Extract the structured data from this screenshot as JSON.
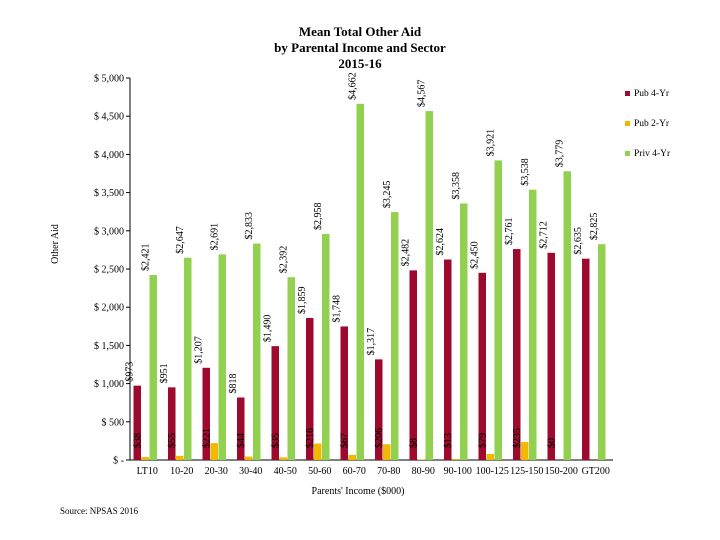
{
  "chart_data": {
    "type": "bar",
    "title_lines": [
      "Mean Total Other Aid",
      "by Parental Income and Sector",
      "2015-16"
    ],
    "ylabel": "Other Aid",
    "xlabel": "Parents' Income ($000)",
    "ylim": [
      0,
      5000
    ],
    "ytick_values": [
      0,
      500,
      1000,
      1500,
      2000,
      2500,
      3000,
      3500,
      4000,
      4500,
      5000
    ],
    "ytick_labels": [
      "$ -",
      "$ 500",
      "$ 1,000",
      "$ 1,500",
      "$ 2,000",
      "$ 2,500",
      "$ 3,000",
      "$ 3,500",
      "$ 4,000",
      "$ 4,500",
      "$ 5,000"
    ],
    "categories": [
      "LT10",
      "10-20",
      "20-30",
      "30-40",
      "40-50",
      "50-60",
      "60-70",
      "70-80",
      "80-90",
      "90-100",
      "100-125",
      "125-150",
      "150-200",
      "GT200"
    ],
    "series": [
      {
        "name": "Pub 4-Yr",
        "color": "#9e0a2e",
        "values": [
          973,
          951,
          1207,
          818,
          1490,
          1859,
          1748,
          1317,
          2482,
          2624,
          2450,
          2761,
          2712,
          2635
        ],
        "labels": [
          "$973",
          "$951",
          "$1,207",
          "$818",
          "$1,490",
          "$1,859",
          "$1,748",
          "$1,317",
          "$2,482",
          "$2,624",
          "$2,450",
          "$2,761",
          "$2,712",
          "$2,635"
        ]
      },
      {
        "name": "Pub 2-Yr",
        "color": "#f2b800",
        "values": [
          38,
          55,
          221,
          44,
          35,
          216,
          67,
          206,
          8,
          13,
          79,
          235,
          0,
          null
        ],
        "labels": [
          "$38",
          "$55",
          "$221",
          "$44",
          "$35",
          "$216",
          "$67",
          "$206",
          "$8",
          "$13",
          "$79",
          "$235",
          "$0",
          ""
        ]
      },
      {
        "name": "Priv 4-Yr",
        "color": "#92d050",
        "values": [
          2421,
          2647,
          2691,
          2833,
          2392,
          2958,
          4662,
          3245,
          4567,
          3358,
          3921,
          3538,
          3779,
          2825
        ],
        "labels": [
          "$2,421",
          "$2,647",
          "$2,691",
          "$2,833",
          "$2,392",
          "$2,958",
          "$4,662",
          "$3,245",
          "$4,567",
          "$3,358",
          "$3,921",
          "$3,538",
          "$3,779",
          "$2,825"
        ]
      }
    ],
    "legend_position": "right",
    "grid": false
  },
  "source_note": "Source: NPSAS 2016"
}
